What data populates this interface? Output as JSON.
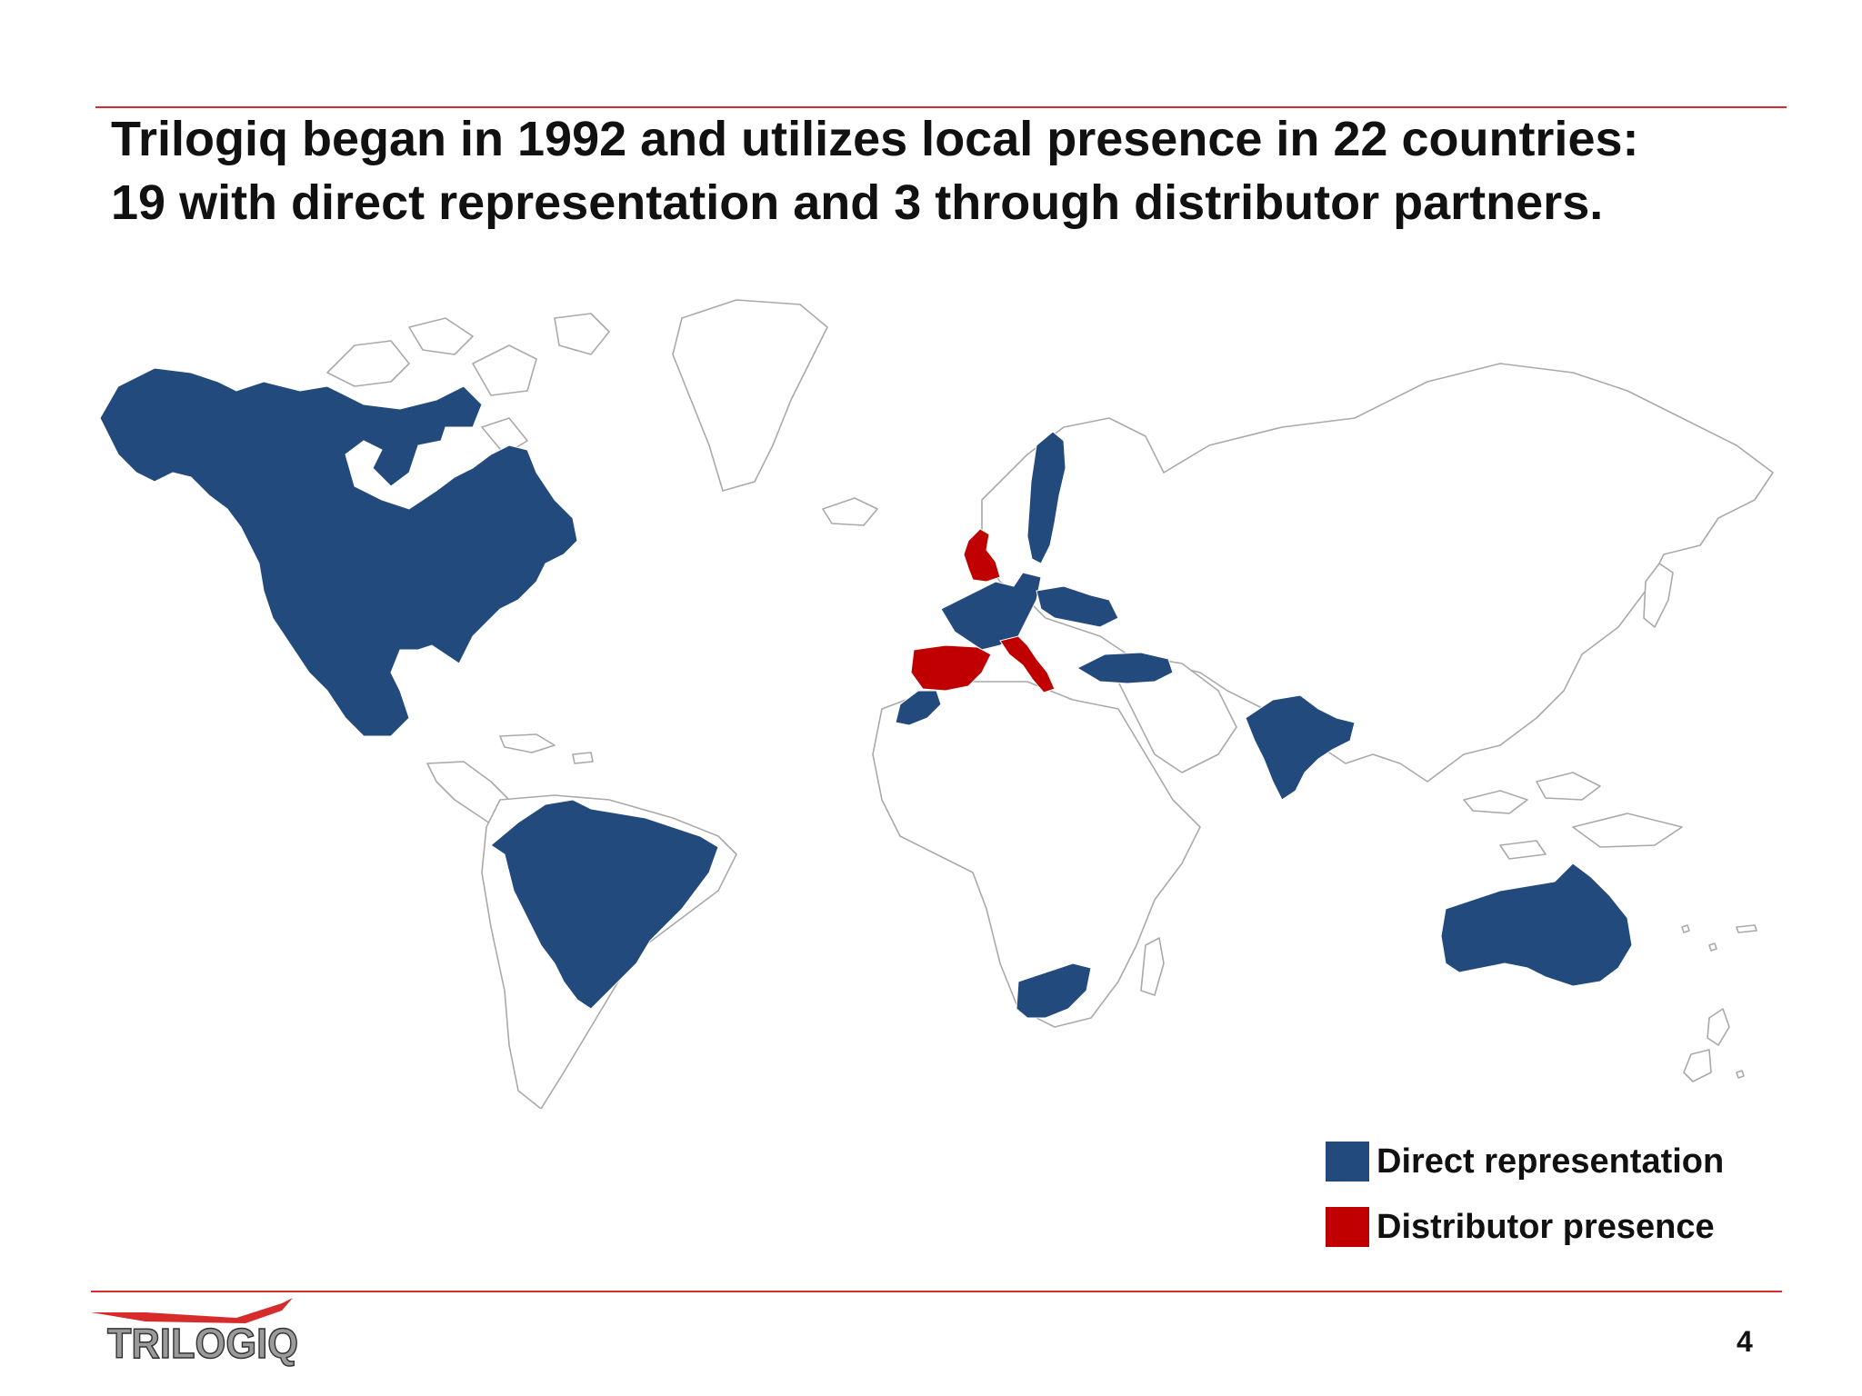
{
  "slide": {
    "title_line1": "Trilogiq began in 1992 and utilizes local presence in 22 countries:",
    "title_line2": "19 with direct representation and 3 through distributor partners.",
    "page_number": "4"
  },
  "legend": [
    {
      "label": "Direct representation",
      "color": "#224a7c"
    },
    {
      "label": "Distributor presence",
      "color": "#c00000"
    }
  ],
  "logo": {
    "text": "TRILOGIQ"
  },
  "colors": {
    "rule": "#d62c2c",
    "direct": "#224a7c",
    "distributor": "#c00000",
    "land_outline": "#a9a9a9",
    "land_fill": "#ffffff"
  },
  "map_data": {
    "direct_representation_regions": [
      "North America",
      "Brazil",
      "Sweden",
      "Western Europe",
      "Central Europe",
      "Turkey",
      "Morocco",
      "South Africa",
      "India",
      "Australia"
    ],
    "distributor_presence_regions": [
      "United Kingdom",
      "Spain",
      "Italy"
    ]
  }
}
